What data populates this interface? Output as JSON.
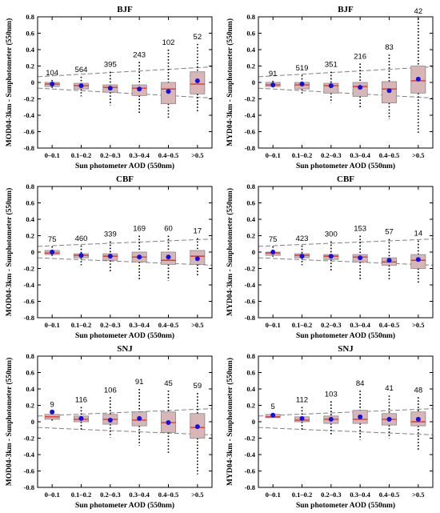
{
  "figure": {
    "categories": [
      "0–0.1",
      "0.1–0.2",
      "0.2–0.3",
      "0.3–0.4",
      "0.4–0.5",
      ">0.5"
    ],
    "colors": {
      "box_fill": "#d9b6b6",
      "median": "#e3352b",
      "mean": "#1111e0",
      "envelope": "#808080"
    }
  },
  "chart_data": [
    {
      "type": "box",
      "title": "BJF",
      "xlabel": "Sun photometer AOD (550nm)",
      "ylabel": "MOD04-3km - Sunphotometer (550nm)",
      "ylim": [
        -0.8,
        0.8
      ],
      "yticks": [
        "-0.8",
        "-0.6",
        "-0.4",
        "-0.2",
        "0",
        "0.2",
        "0.4",
        "0.6",
        "0.8"
      ],
      "categories": [
        "0–0.1",
        "0.1–0.2",
        "0.2–0.3",
        "0.3–0.4",
        "0.4–0.5",
        ">0.5"
      ],
      "counts": [
        "104",
        "564",
        "395",
        "243",
        "102",
        "52"
      ],
      "whisker_low": [
        -0.07,
        -0.17,
        -0.28,
        -0.38,
        -0.43,
        -0.35
      ],
      "q1": [
        -0.05,
        -0.08,
        -0.12,
        -0.16,
        -0.26,
        -0.14
      ],
      "median": [
        -0.02,
        -0.04,
        -0.06,
        -0.07,
        -0.08,
        -0.02
      ],
      "q3": [
        0.0,
        -0.01,
        -0.03,
        -0.03,
        0.0,
        0.13
      ],
      "whisker_high": [
        0.03,
        0.07,
        0.13,
        0.25,
        0.4,
        0.47
      ],
      "mean": [
        -0.02,
        -0.04,
        -0.07,
        -0.08,
        -0.11,
        0.02
      ],
      "envelope_upper": [
        0.07,
        0.19
      ],
      "envelope_lower": [
        -0.07,
        -0.19
      ]
    },
    {
      "type": "box",
      "title": "BJF",
      "xlabel": "Sun photometer AOD (550nm)",
      "ylabel": "MYD04-3km - Sunphotometer (550nm)",
      "ylim": [
        -0.8,
        0.8
      ],
      "yticks": [
        "-0.8",
        "-0.6",
        "-0.4",
        "-0.2",
        "0",
        "0.2",
        "0.4",
        "0.6",
        "0.8"
      ],
      "categories": [
        "0–0.1",
        "0.1–0.2",
        "0.2–0.3",
        "0.3–0.4",
        "0.4–0.5",
        ">0.5"
      ],
      "counts": [
        "91",
        "519",
        "351",
        "216",
        "83",
        "42"
      ],
      "whisker_low": [
        -0.06,
        -0.15,
        -0.25,
        -0.32,
        -0.45,
        -0.62
      ],
      "q1": [
        -0.05,
        -0.08,
        -0.13,
        -0.17,
        -0.25,
        -0.13
      ],
      "median": [
        -0.03,
        -0.03,
        -0.04,
        -0.05,
        -0.08,
        0.02
      ],
      "q3": [
        0.0,
        0.0,
        -0.01,
        0.0,
        0.01,
        0.2
      ],
      "whisker_high": [
        0.02,
        0.09,
        0.13,
        0.23,
        0.34,
        0.78
      ],
      "mean": [
        -0.03,
        -0.02,
        -0.04,
        -0.06,
        -0.1,
        0.04
      ],
      "envelope_upper": [
        0.07,
        0.19
      ],
      "envelope_lower": [
        -0.07,
        -0.19
      ]
    },
    {
      "type": "box",
      "title": "CBF",
      "xlabel": "Sun photometer AOD (550nm)",
      "ylabel": "MOD04-3km - Sunphotometer (550nm)",
      "ylim": [
        -0.8,
        0.8
      ],
      "yticks": [
        "-0.8",
        "-0.6",
        "-0.4",
        "-0.2",
        "0",
        "0.2",
        "0.4",
        "0.6",
        "0.8"
      ],
      "categories": [
        "0–0.1",
        "0.1–0.2",
        "0.2–0.3",
        "0.3–0.4",
        "0.4–0.5",
        ">0.5"
      ],
      "counts": [
        "75",
        "460",
        "339",
        "169",
        "60",
        "17"
      ],
      "whisker_low": [
        -0.06,
        -0.16,
        -0.25,
        -0.34,
        -0.35,
        -0.3
      ],
      "q1": [
        -0.03,
        -0.07,
        -0.1,
        -0.12,
        -0.15,
        -0.15
      ],
      "median": [
        -0.01,
        -0.04,
        -0.05,
        -0.06,
        -0.1,
        -0.05
      ],
      "q3": [
        0.02,
        -0.02,
        -0.02,
        0.0,
        0.0,
        0.02
      ],
      "whisker_high": [
        0.07,
        0.08,
        0.13,
        0.2,
        0.2,
        0.17
      ],
      "mean": [
        0.0,
        -0.04,
        -0.05,
        -0.06,
        -0.06,
        -0.08
      ],
      "envelope_upper": [
        0.07,
        0.16
      ],
      "envelope_lower": [
        -0.07,
        -0.16
      ]
    },
    {
      "type": "box",
      "title": "CBF",
      "xlabel": "Sun photometer AOD (550nm)",
      "ylabel": "MYD04-3km - Sunphotometer (550nm)",
      "ylim": [
        -0.8,
        0.8
      ],
      "yticks": [
        "-0.8",
        "-0.6",
        "-0.4",
        "-0.2",
        "0",
        "0.2",
        "0.4",
        "0.6",
        "0.8"
      ],
      "categories": [
        "0–0.1",
        "0.1–0.2",
        "0.2–0.3",
        "0.3–0.4",
        "0.4–0.5",
        ">0.5"
      ],
      "counts": [
        "75",
        "423",
        "300",
        "153",
        "57",
        "14"
      ],
      "whisker_low": [
        -0.06,
        -0.16,
        -0.23,
        -0.33,
        -0.33,
        -0.38
      ],
      "q1": [
        -0.04,
        -0.07,
        -0.09,
        -0.12,
        -0.16,
        -0.2
      ],
      "median": [
        -0.01,
        -0.04,
        -0.05,
        -0.06,
        -0.12,
        -0.1
      ],
      "q3": [
        0.0,
        -0.02,
        -0.03,
        -0.03,
        -0.07,
        -0.03
      ],
      "whisker_high": [
        0.07,
        0.08,
        0.13,
        0.2,
        0.16,
        0.14
      ],
      "mean": [
        0.0,
        -0.05,
        -0.05,
        -0.07,
        -0.1,
        -0.09
      ],
      "envelope_upper": [
        0.07,
        0.16
      ],
      "envelope_lower": [
        -0.07,
        -0.16
      ]
    },
    {
      "type": "box",
      "title": "SNJ",
      "xlabel": "Sun photometer AOD (550nm)",
      "ylabel": "MOD04-3km - Sunphotometer (550nm)",
      "ylim": [
        -0.8,
        0.8
      ],
      "yticks": [
        "-0.8",
        "-0.6",
        "-0.4",
        "-0.2",
        "0",
        "0.2",
        "0.4",
        "0.6",
        "0.8"
      ],
      "categories": [
        "0–0.1",
        "0.1–0.2",
        "0.2–0.3",
        "0.3–0.4",
        "0.4–0.5",
        ">0.5"
      ],
      "counts": [
        "9",
        "116",
        "106",
        "91",
        "45",
        "59"
      ],
      "whisker_low": [
        0.0,
        -0.1,
        -0.19,
        -0.29,
        -0.4,
        -0.64
      ],
      "q1": [
        0.03,
        0.0,
        -0.03,
        -0.05,
        -0.13,
        -0.2
      ],
      "median": [
        0.06,
        0.03,
        0.03,
        0.02,
        -0.01,
        -0.07
      ],
      "q3": [
        0.09,
        0.07,
        0.09,
        0.12,
        0.12,
        0.1
      ],
      "whisker_high": [
        0.12,
        0.18,
        0.3,
        0.4,
        0.38,
        0.35
      ],
      "mean": [
        0.12,
        0.04,
        0.02,
        0.04,
        -0.01,
        -0.06
      ],
      "envelope_upper": [
        0.07,
        0.16
      ],
      "envelope_lower": [
        -0.07,
        -0.16
      ]
    },
    {
      "type": "box",
      "title": "SNJ",
      "xlabel": "Sun photometer AOD (550nm)",
      "ylabel": "MYD04-3km - Sunphotometer (550nm)",
      "ylim": [
        -0.8,
        0.8
      ],
      "yticks": [
        "-0.8",
        "-0.6",
        "-0.4",
        "-0.2",
        "0",
        "0.2",
        "0.4",
        "0.6",
        "0.8"
      ],
      "categories": [
        "0–0.1",
        "0.1–0.2",
        "0.2–0.3",
        "0.3–0.4",
        "0.4–0.5",
        ">0.5"
      ],
      "counts": [
        "5",
        "112",
        "103",
        "84",
        "41",
        "48"
      ],
      "whisker_low": [
        0.05,
        -0.1,
        -0.16,
        -0.22,
        -0.2,
        -0.35
      ],
      "q1": [
        0.05,
        0.0,
        -0.02,
        -0.02,
        -0.04,
        -0.05
      ],
      "median": [
        0.06,
        0.02,
        0.03,
        0.03,
        0.03,
        0.0
      ],
      "q3": [
        0.09,
        0.06,
        0.07,
        0.14,
        0.1,
        0.12
      ],
      "whisker_high": [
        0.1,
        0.18,
        0.25,
        0.38,
        0.32,
        0.3
      ],
      "mean": [
        0.08,
        0.04,
        0.03,
        0.06,
        0.03,
        0.03
      ],
      "envelope_upper": [
        0.07,
        0.16
      ],
      "envelope_lower": [
        -0.07,
        -0.16
      ]
    }
  ]
}
